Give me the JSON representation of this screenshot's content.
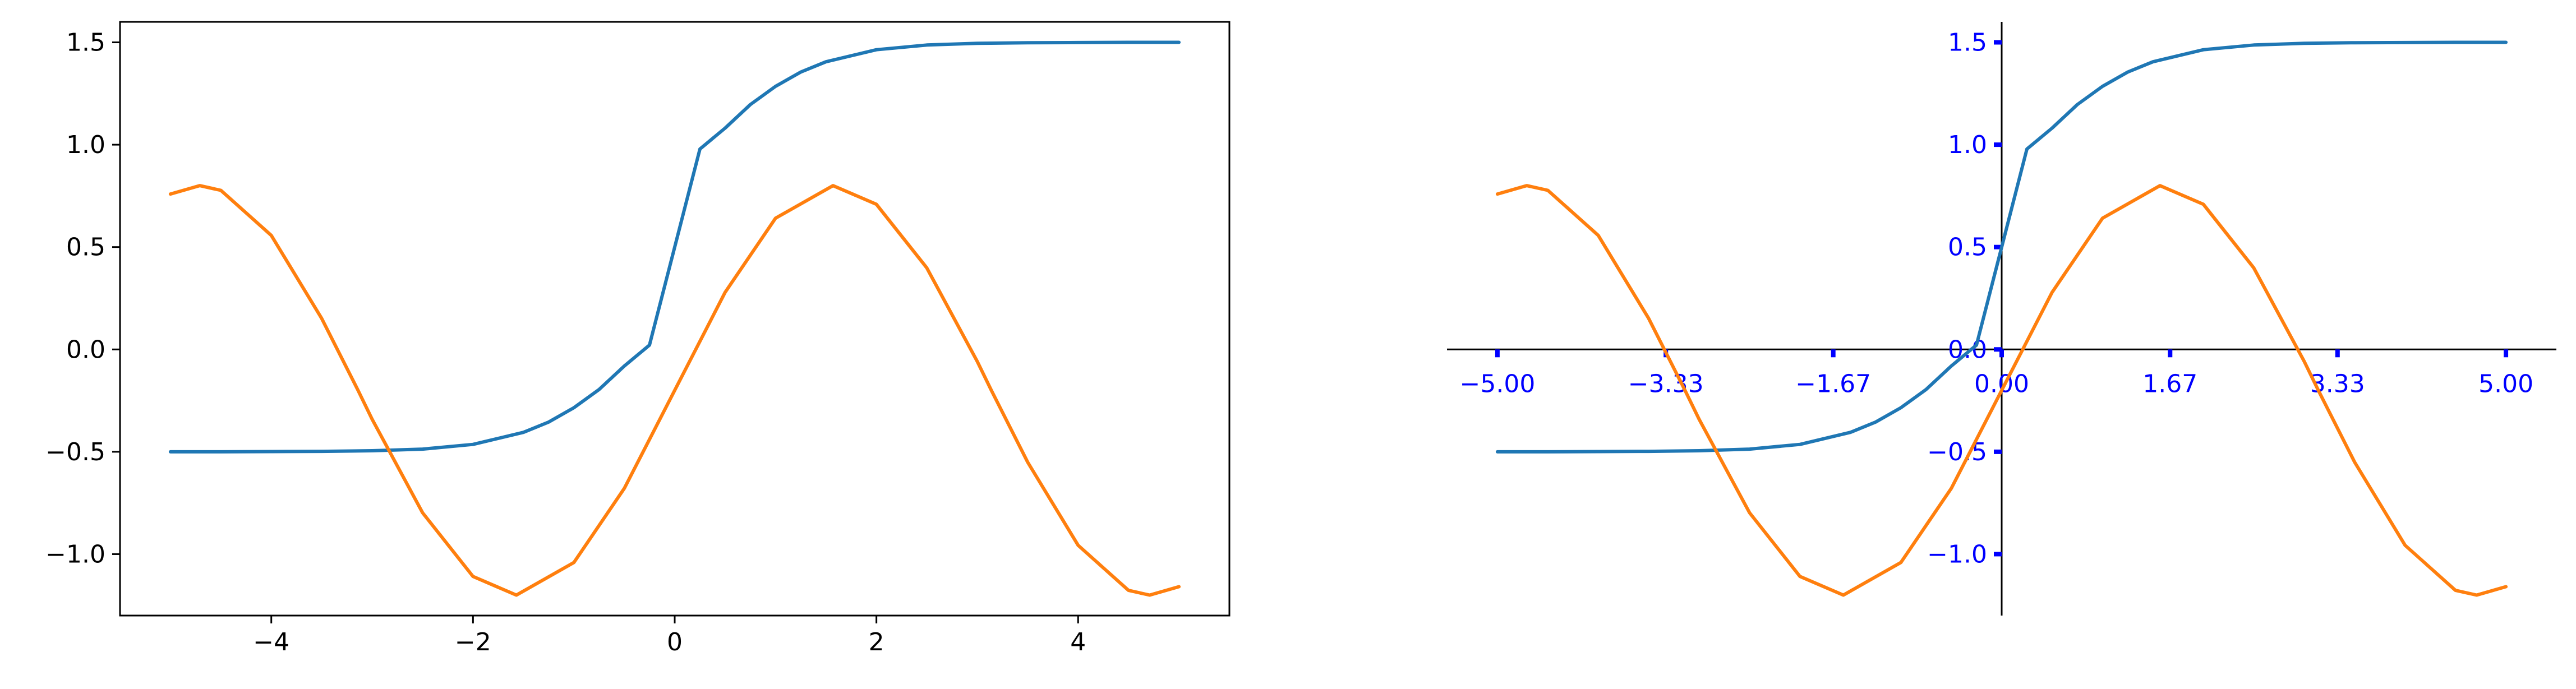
{
  "chart_data": [
    {
      "type": "line",
      "title": "",
      "xlabel": "",
      "ylabel": "",
      "xlim": [
        -5.5,
        5.5
      ],
      "ylim": [
        -1.3,
        1.6
      ],
      "xticks": [
        -4,
        -2,
        0,
        2,
        4
      ],
      "xtick_labels": [
        "−4",
        "−2",
        "0",
        "2",
        "4"
      ],
      "yticks": [
        -1.0,
        -0.5,
        0.0,
        0.5,
        1.0,
        1.5
      ],
      "ytick_labels": [
        "−1.0",
        "−0.5",
        "0.0",
        "0.5",
        "1.0",
        "1.5"
      ],
      "axes_style": "box",
      "grid": false,
      "series": [
        {
          "color": "#1f77b4",
          "x": [
            -5.0,
            -4.5,
            -4.0,
            -3.5,
            -3.0,
            -2.5,
            -2.0,
            -1.5,
            -1.25,
            -1.0,
            -0.75,
            -0.5,
            -0.25,
            0.0,
            0.25,
            0.5,
            0.75,
            1.0,
            1.25,
            1.5,
            2.0,
            2.5,
            3.0,
            3.5,
            4.0,
            4.5,
            5.0
          ],
          "y": [
            -0.5,
            -0.5,
            -0.499,
            -0.498,
            -0.495,
            -0.487,
            -0.464,
            -0.405,
            -0.355,
            -0.285,
            -0.196,
            -0.081,
            0.021,
            0.5,
            0.979,
            1.081,
            1.196,
            1.285,
            1.355,
            1.405,
            1.464,
            1.487,
            1.495,
            1.498,
            1.499,
            1.5,
            1.5
          ]
        },
        {
          "color": "#ff7f0e",
          "x": [
            -5.0,
            -4.71,
            -4.5,
            -4.0,
            -3.5,
            -3.14,
            -3.0,
            -2.5,
            -2.0,
            -1.57,
            -1.0,
            -0.5,
            0.0,
            0.5,
            1.0,
            1.57,
            2.0,
            2.5,
            3.0,
            3.14,
            3.5,
            4.0,
            4.5,
            4.71,
            5.0
          ],
          "y": [
            0.759,
            0.8,
            0.777,
            0.557,
            0.151,
            -0.2,
            -0.341,
            -0.798,
            -1.109,
            -1.2,
            -1.041,
            -0.679,
            -0.2,
            0.279,
            0.641,
            0.8,
            0.709,
            0.398,
            -0.059,
            -0.2,
            -0.551,
            -0.957,
            -1.177,
            -1.2,
            -1.159
          ]
        }
      ]
    },
    {
      "type": "line",
      "title": "",
      "xlabel": "",
      "ylabel": "",
      "xlim": [
        -5.5,
        5.5
      ],
      "ylim": [
        -1.3,
        1.6
      ],
      "xticks": [
        -5.0,
        -3.33,
        -1.67,
        0.0,
        1.67,
        3.33,
        5.0
      ],
      "xtick_labels": [
        "−5.00",
        "−3.33",
        "−1.67",
        "0.00",
        "1.67",
        "3.33",
        "5.00"
      ],
      "yticks": [
        -1.0,
        -0.5,
        0.0,
        0.5,
        1.0,
        1.5
      ],
      "ytick_labels": [
        "−1.0",
        "−0.5",
        "0.0",
        "0.5",
        "1.0",
        "1.5"
      ],
      "axes_style": "centered spines",
      "tick_color": "#0000ff",
      "grid": false,
      "series": [
        {
          "color": "#1f77b4",
          "x": [
            -5.0,
            -4.5,
            -4.0,
            -3.5,
            -3.0,
            -2.5,
            -2.0,
            -1.5,
            -1.25,
            -1.0,
            -0.75,
            -0.5,
            -0.25,
            0.0,
            0.25,
            0.5,
            0.75,
            1.0,
            1.25,
            1.5,
            2.0,
            2.5,
            3.0,
            3.5,
            4.0,
            4.5,
            5.0
          ],
          "y": [
            -0.5,
            -0.5,
            -0.499,
            -0.498,
            -0.495,
            -0.487,
            -0.464,
            -0.405,
            -0.355,
            -0.285,
            -0.196,
            -0.081,
            0.021,
            0.5,
            0.979,
            1.081,
            1.196,
            1.285,
            1.355,
            1.405,
            1.464,
            1.487,
            1.495,
            1.498,
            1.499,
            1.5,
            1.5
          ]
        },
        {
          "color": "#ff7f0e",
          "x": [
            -5.0,
            -4.71,
            -4.5,
            -4.0,
            -3.5,
            -3.14,
            -3.0,
            -2.5,
            -2.0,
            -1.57,
            -1.0,
            -0.5,
            0.0,
            0.5,
            1.0,
            1.57,
            2.0,
            2.5,
            3.0,
            3.14,
            3.5,
            4.0,
            4.5,
            4.71,
            5.0
          ],
          "y": [
            0.759,
            0.8,
            0.777,
            0.557,
            0.151,
            -0.2,
            -0.341,
            -0.798,
            -1.109,
            -1.2,
            -1.041,
            -0.679,
            -0.2,
            0.279,
            0.641,
            0.8,
            0.709,
            0.398,
            -0.059,
            -0.2,
            -0.551,
            -0.957,
            -1.177,
            -1.2,
            -1.159
          ]
        }
      ]
    }
  ]
}
